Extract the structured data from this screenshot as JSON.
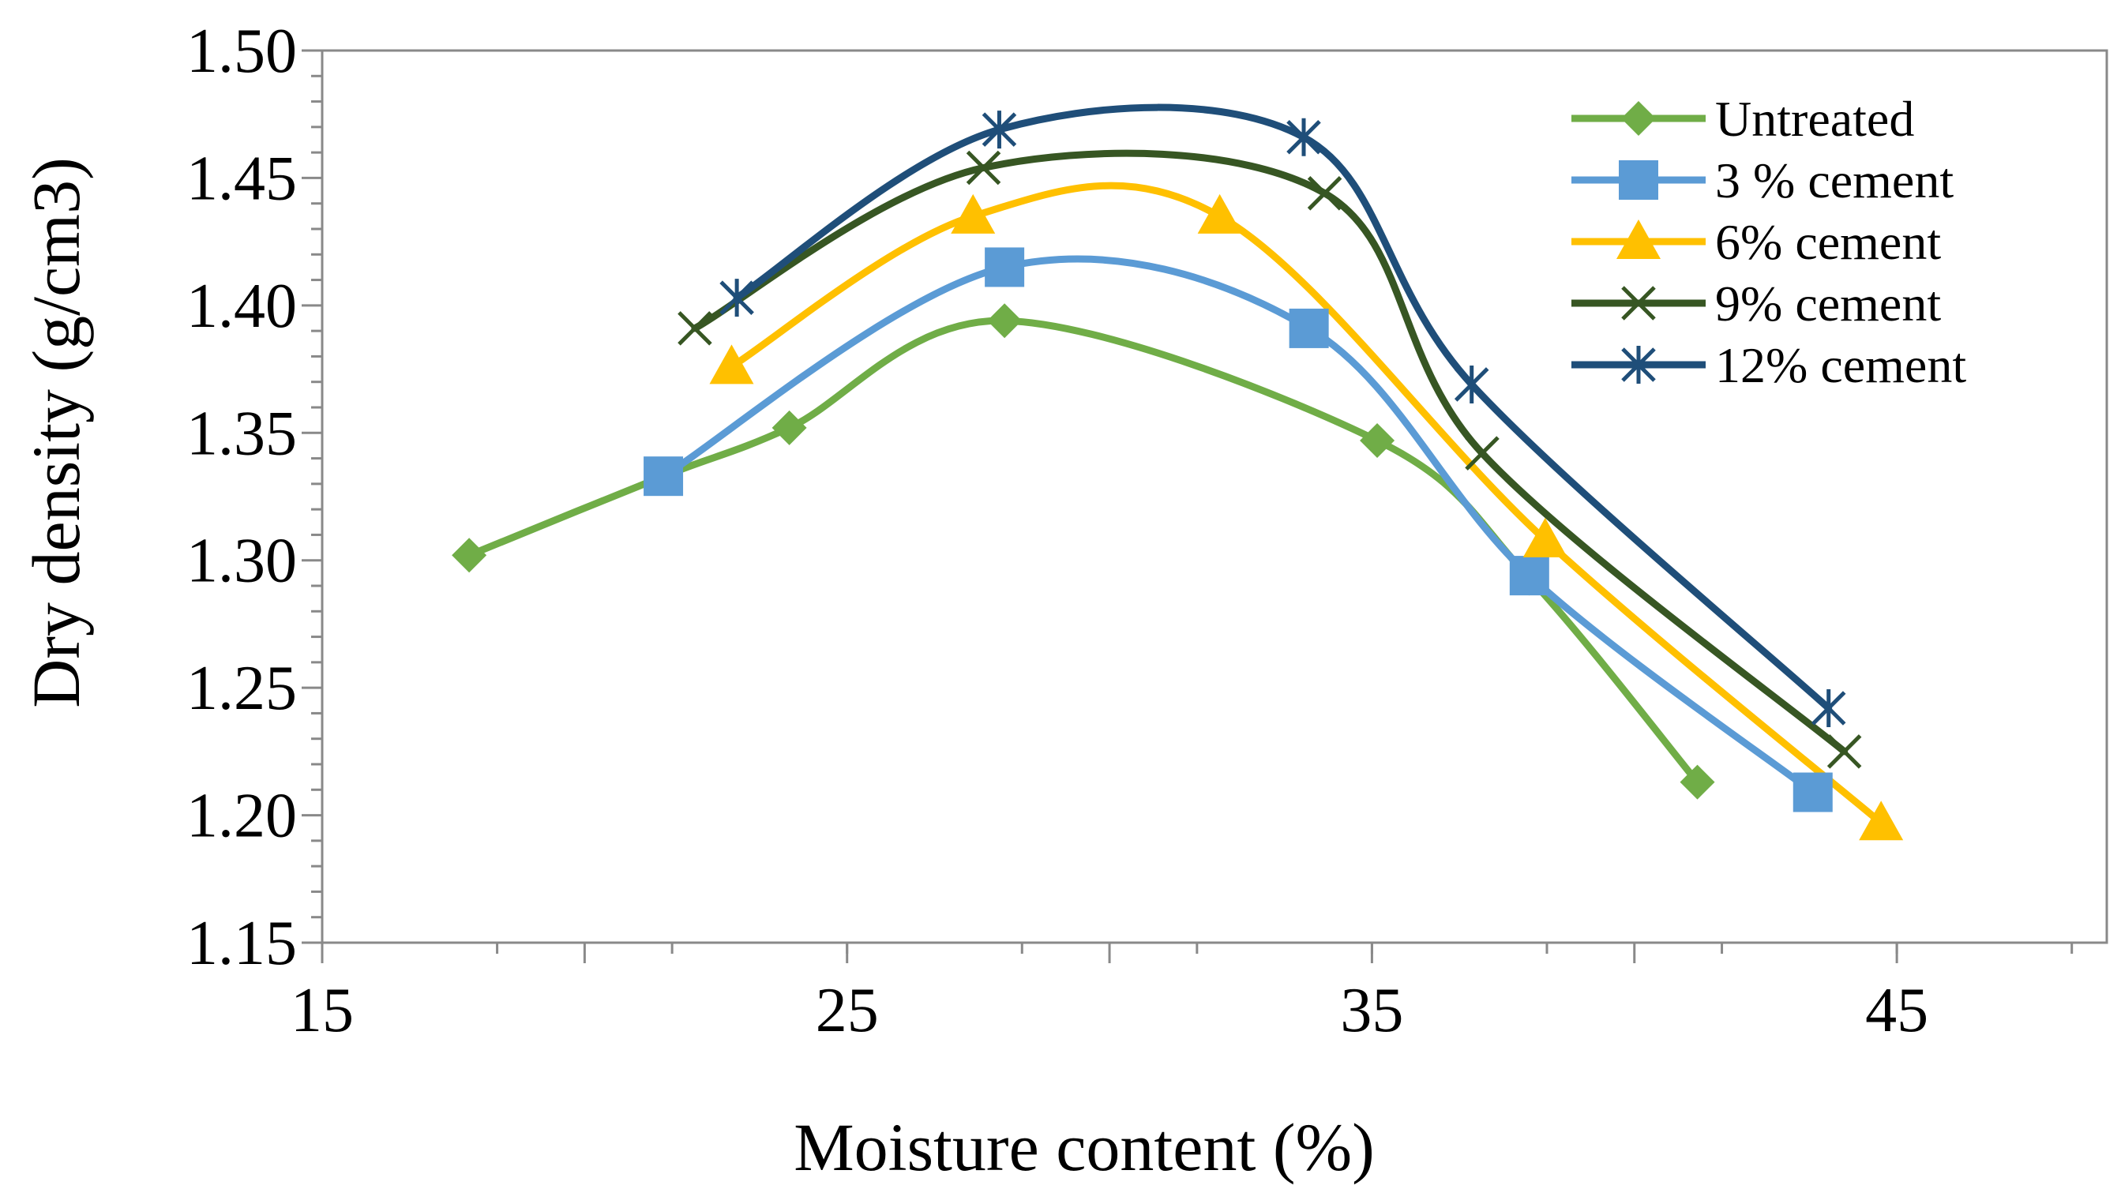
{
  "chart_data": {
    "type": "scatter",
    "title": "",
    "xlabel": "Moisture content (%)",
    "ylabel": "Dry density (g/cm3)",
    "xlim": [
      15,
      49
    ],
    "ylim": [
      1.15,
      1.5
    ],
    "xticks": [
      "15",
      "25",
      "35",
      "45"
    ],
    "yticks": [
      "1.15",
      "1.20",
      "1.25",
      "1.30",
      "1.35",
      "1.40",
      "1.45",
      "1.50"
    ],
    "grid": false,
    "legend_position": "top-right",
    "series": [
      {
        "name": "Untreated",
        "color": "#70AD47",
        "marker": "diamond",
        "x": [
          17.8,
          21.5,
          23.9,
          28.0,
          35.1,
          38.0,
          41.2
        ],
        "y": [
          1.302,
          1.333,
          1.352,
          1.394,
          1.347,
          1.293,
          1.213
        ]
      },
      {
        "name": "3 % cement",
        "color": "#5B9BD5",
        "marker": "square",
        "x": [
          21.5,
          28.0,
          33.8,
          38.0,
          43.4
        ],
        "y": [
          1.333,
          1.415,
          1.391,
          1.294,
          1.209
        ]
      },
      {
        "name": "6% cement",
        "color": "#FFC000",
        "marker": "triangle",
        "x": [
          22.8,
          27.4,
          32.1,
          38.3,
          44.7
        ],
        "y": [
          1.376,
          1.435,
          1.435,
          1.308,
          1.197
        ]
      },
      {
        "name": "9% cement",
        "color": "#375623",
        "marker": "x",
        "x": [
          22.1,
          27.6,
          34.1,
          37.1,
          44.0
        ],
        "y": [
          1.391,
          1.454,
          1.444,
          1.342,
          1.225
        ]
      },
      {
        "name": "12% cement",
        "color": "#1F4E79",
        "marker": "star",
        "x": [
          22.9,
          27.9,
          33.7,
          36.9,
          43.7
        ],
        "y": [
          1.403,
          1.469,
          1.466,
          1.369,
          1.242
        ]
      }
    ]
  }
}
